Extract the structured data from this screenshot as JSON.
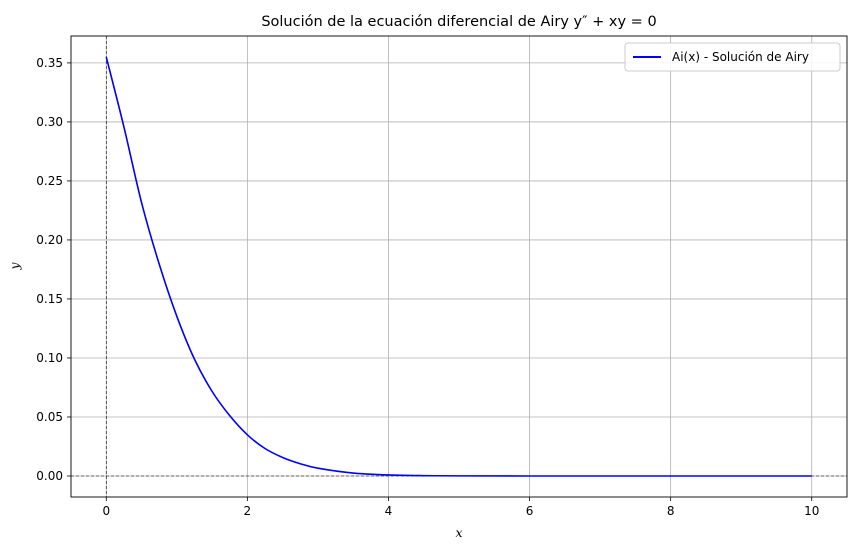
{
  "chart_data": {
    "type": "line",
    "title": "Solución de la ecuación diferencial de Airy y″ + xy = 0",
    "xlabel": "x",
    "ylabel": "y",
    "xlim": [
      -0.5,
      10.5
    ],
    "ylim": [
      -0.0178,
      0.3728
    ],
    "x_ticks": [
      "0",
      "2",
      "4",
      "6",
      "8",
      "10"
    ],
    "y_ticks": [
      "0.00",
      "0.05",
      "0.10",
      "0.15",
      "0.20",
      "0.25",
      "0.30",
      "0.35"
    ],
    "grid": true,
    "legend_position": "top-right",
    "reference_lines": {
      "x": 0,
      "y": 0,
      "style": "dashed",
      "color": "#000000"
    },
    "series": [
      {
        "name": "Ai(x) - Solución de Airy",
        "color": "#0000ff",
        "x": [
          0,
          0.25,
          0.5,
          0.75,
          1.0,
          1.25,
          1.5,
          1.75,
          2.0,
          2.25,
          2.5,
          2.75,
          3.0,
          3.5,
          4.0,
          4.5,
          5.0,
          6.0,
          7.0,
          8.0,
          9.0,
          10.0
        ],
        "y": [
          0.355,
          0.2958,
          0.2317,
          0.1796,
          0.1353,
          0.099,
          0.0717,
          0.0511,
          0.0349,
          0.0233,
          0.0157,
          0.0104,
          0.0066,
          0.0025,
          0.0009,
          0.0003,
          0.0001,
          0.0,
          0.0,
          0.0,
          0.0,
          0.0
        ]
      }
    ]
  }
}
